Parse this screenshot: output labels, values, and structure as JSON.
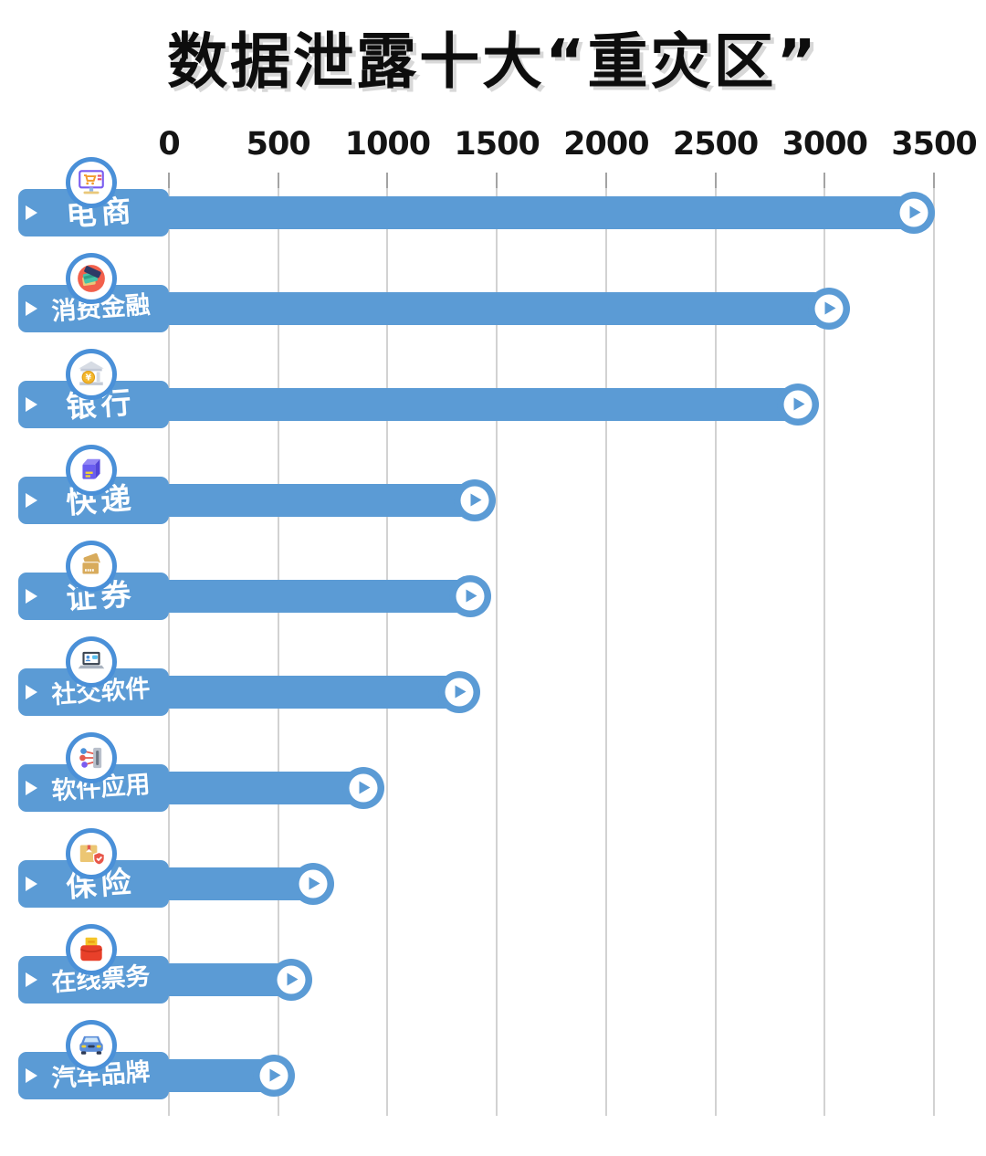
{
  "title": "数据泄露十大“重灾区”",
  "colors": {
    "bar": "#5b9bd5",
    "icon_ring": "#4a90d8",
    "gridline": "#d2d2d2",
    "tick": "#a3a3a3",
    "title_text": "#0d0d0d",
    "axis_text": "#141414",
    "label_text": "#ffffff",
    "background": "#ffffff"
  },
  "chart_data": {
    "type": "bar",
    "orientation": "horizontal",
    "title": "数据泄露十大“重灾区”",
    "xlabel": "",
    "ylabel": "",
    "xlim": [
      0,
      3500
    ],
    "x_ticks": [
      0,
      500,
      1000,
      1500,
      2000,
      2500,
      3000,
      3500
    ],
    "x_tick_labels": [
      "0",
      "500",
      "1000",
      "1500",
      "2000",
      "2500",
      "3000",
      "3500"
    ],
    "grid": true,
    "legend": false,
    "categories": [
      "电商",
      "消费金融",
      "银行",
      "快递",
      "证券",
      "社交软件",
      "软件应用",
      "保险",
      "在线票务",
      "汽车品牌"
    ],
    "values": [
      3480,
      3090,
      2950,
      1470,
      1450,
      1400,
      960,
      730,
      630,
      550
    ],
    "rows": [
      {
        "label": "电商",
        "value": 3480,
        "icon": "ecommerce-monitor-cart-icon"
      },
      {
        "label": "消费金融",
        "value": 3090,
        "icon": "credit-cards-icon"
      },
      {
        "label": "银行",
        "value": 2950,
        "icon": "bank-building-icon"
      },
      {
        "label": "快递",
        "value": 1470,
        "icon": "parcel-box-icon"
      },
      {
        "label": "证券",
        "value": 1450,
        "icon": "securities-cards-icon"
      },
      {
        "label": "社交软件",
        "value": 1400,
        "icon": "laptop-chat-icon"
      },
      {
        "label": "软件应用",
        "value": 960,
        "icon": "app-network-icon"
      },
      {
        "label": "保险",
        "value": 730,
        "icon": "package-shield-icon"
      },
      {
        "label": "在线票务",
        "value": 630,
        "icon": "ticket-box-icon"
      },
      {
        "label": "汽车品牌",
        "value": 550,
        "icon": "car-icon"
      }
    ]
  }
}
